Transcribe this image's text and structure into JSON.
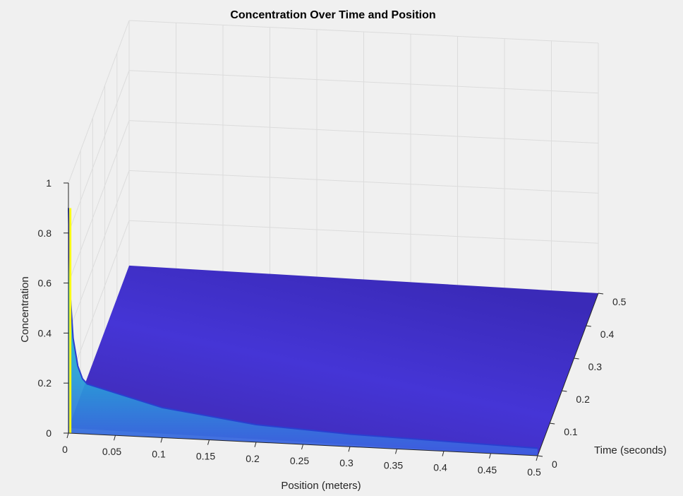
{
  "chart_data": {
    "type": "surface",
    "title": "Concentration Over Time and Position",
    "xlabel": "Position (meters)",
    "ylabel": "Time (seconds)",
    "zlabel": "Concentration",
    "xlim": [
      0,
      0.5
    ],
    "ylim": [
      0,
      0.5
    ],
    "zlim": [
      0,
      1
    ],
    "xticks": [
      "0",
      "0.05",
      "0.1",
      "0.15",
      "0.2",
      "0.25",
      "0.3",
      "0.35",
      "0.4",
      "0.45",
      "0.5"
    ],
    "yticks": [
      "0",
      "0.1",
      "0.2",
      "0.3",
      "0.4",
      "0.5"
    ],
    "zticks": [
      "0",
      "0.2",
      "0.4",
      "0.6",
      "0.8",
      "1"
    ],
    "grid": true,
    "colormap": "parula",
    "colors": {
      "low": "#3e26a8",
      "mid": "#2a9bd8",
      "high": "#f9fb15"
    },
    "boundary_curve_t0": {
      "x": [
        0,
        0.002,
        0.005,
        0.01,
        0.015,
        0.02,
        0.03,
        0.05,
        0.1,
        0.2,
        0.3,
        0.4,
        0.5
      ],
      "z": [
        0.9,
        0.55,
        0.38,
        0.27,
        0.22,
        0.2,
        0.19,
        0.17,
        0.12,
        0.07,
        0.05,
        0.04,
        0.03
      ]
    },
    "far_edge_x0": {
      "t": [
        0,
        0.1,
        0.2,
        0.3,
        0.4,
        0.5
      ],
      "z": [
        0.02,
        0.02,
        0.02,
        0.02,
        0.02,
        0.02
      ]
    }
  }
}
